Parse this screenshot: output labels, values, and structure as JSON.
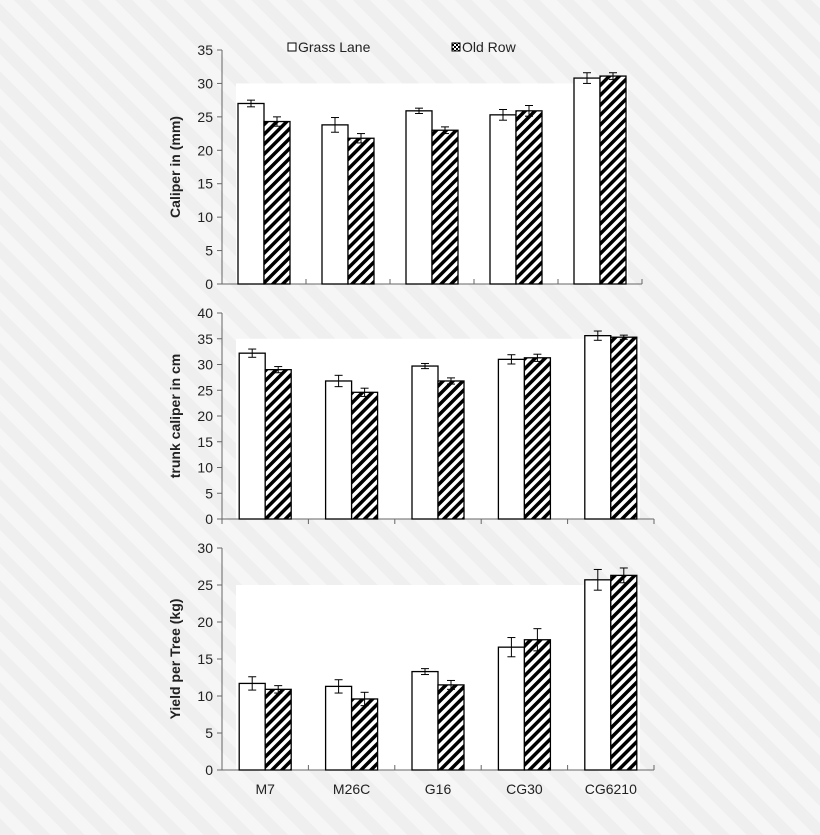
{
  "chart_data": [
    {
      "type": "bar",
      "categories": [
        "M7",
        "M26C",
        "G16",
        "CG30",
        "CG6210"
      ],
      "ylabel": "Caliper in (mm)",
      "ylim": [
        0,
        35
      ],
      "yticks": [
        0,
        5,
        10,
        15,
        20,
        25,
        30,
        35
      ],
      "legend": {
        "placement": "top",
        "entries": [
          "Grass Lane",
          "Old Row"
        ]
      },
      "series": [
        {
          "name": "Grass Lane",
          "values": [
            27.0,
            23.8,
            25.9,
            25.3,
            30.8
          ],
          "errors": [
            0.5,
            1.1,
            0.4,
            0.8,
            0.8
          ]
        },
        {
          "name": "Old Row",
          "values": [
            24.3,
            21.8,
            23.0,
            25.9,
            31.1
          ],
          "errors": [
            0.7,
            0.7,
            0.5,
            0.8,
            0.5
          ]
        }
      ]
    },
    {
      "type": "bar",
      "categories": [
        "M7",
        "M26C",
        "G16",
        "CG30",
        "CG6210"
      ],
      "ylabel": "trunk caliper in cm",
      "ylim": [
        0,
        40
      ],
      "yticks": [
        0,
        5,
        10,
        15,
        20,
        25,
        30,
        35,
        40
      ],
      "series": [
        {
          "name": "Grass Lane",
          "values": [
            32.2,
            26.8,
            29.7,
            31.0,
            35.6
          ],
          "errors": [
            0.8,
            1.1,
            0.5,
            0.9,
            0.9
          ]
        },
        {
          "name": "Old Row",
          "values": [
            29.0,
            24.6,
            26.8,
            31.3,
            35.3
          ],
          "errors": [
            0.6,
            0.8,
            0.6,
            0.7,
            0.4
          ]
        }
      ]
    },
    {
      "type": "bar",
      "categories": [
        "M7",
        "M26C",
        "G16",
        "CG30",
        "CG6210"
      ],
      "ylabel": "Yield per Tree (kg)",
      "ylim": [
        0,
        30
      ],
      "yticks": [
        0,
        5,
        10,
        15,
        20,
        25,
        30
      ],
      "xtick_labels": [
        "M7",
        "M26C",
        "G16",
        "CG30",
        "CG6210"
      ],
      "series": [
        {
          "name": "Grass Lane",
          "values": [
            11.7,
            11.3,
            13.3,
            16.6,
            25.7
          ],
          "errors": [
            0.9,
            0.9,
            0.4,
            1.3,
            1.4
          ]
        },
        {
          "name": "Old Row",
          "values": [
            10.9,
            9.6,
            11.5,
            17.6,
            26.3
          ],
          "errors": [
            0.5,
            0.9,
            0.6,
            1.5,
            1.0
          ]
        }
      ]
    }
  ]
}
